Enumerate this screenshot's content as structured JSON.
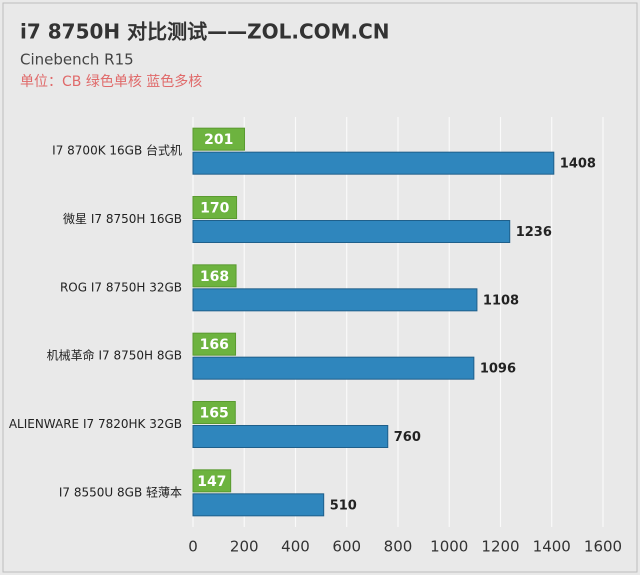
{
  "chart_data": {
    "type": "bar",
    "orientation": "horizontal",
    "title": "i7 8750H 对比测试——ZOL.COM.CN",
    "subtitle": "Cinebench R15",
    "note": "单位：CB 绿色单核 蓝色多核",
    "categories": [
      "I7 8700K 16GB 台式机",
      "微星 I7 8750H 16GB",
      "ROG I7 8750H 32GB",
      "机械革命 I7 8750H 8GB",
      "ALIENWARE I7 7820HK 32GB",
      "I7 8550U 8GB 轻薄本"
    ],
    "series": [
      {
        "color": "#6db33f",
        "values": [
          201,
          170,
          168,
          166,
          165,
          147
        ]
      },
      {
        "color": "#2f86bd",
        "values": [
          1408,
          1236,
          1108,
          1096,
          760,
          510
        ]
      }
    ],
    "xlim": [
      0,
      1600
    ],
    "xticks": [
      0,
      200,
      400,
      600,
      800,
      1000,
      1200,
      1400,
      1600
    ],
    "grid": true
  }
}
